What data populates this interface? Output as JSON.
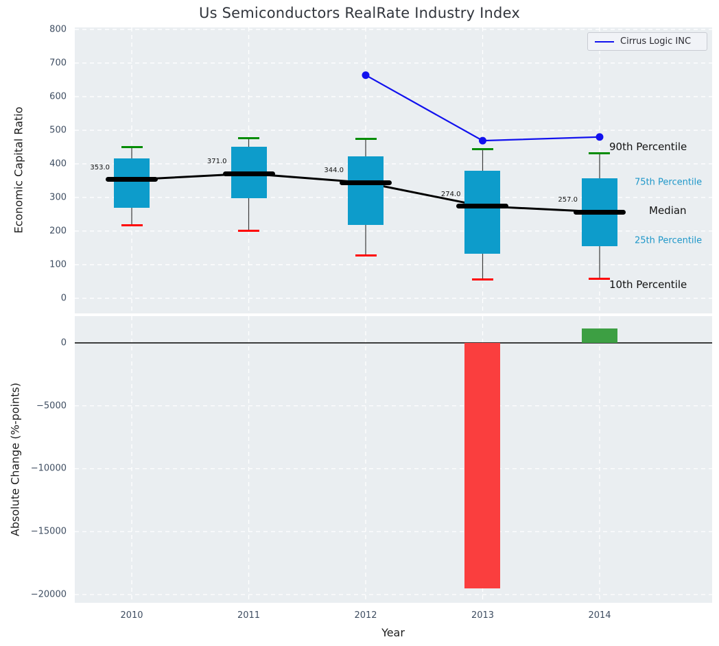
{
  "title": "Us Semiconductors RealRate Industry Index",
  "legend": {
    "label": "Cirrus Logic INC",
    "position": "upper right"
  },
  "colors": {
    "figure_bg": "#ffffff",
    "plot_bg": "#eaeef1",
    "grid": "#ffffff",
    "tick_label": "#3e4d61",
    "title": "#31353c",
    "axis_label": "#1c1c1c",
    "box_fill": "#0d9ccb",
    "whisker": "#3a3a3a",
    "cap_top_green": "#008c00",
    "cap_bottom_red": "#ff0000",
    "median_black": "#000000",
    "company_line_blue": "#1111ee",
    "bar_negative_red": "#fa3e3e",
    "bar_positive_green": "#3d9f43",
    "zero_line": "#000000",
    "annotation_cyan": "#1e97c9",
    "annotation_black": "#111111"
  },
  "chart_data": [
    {
      "type": "boxplot+line",
      "title": "Us Semiconductors RealRate Industry Index",
      "ylabel": "Economic Capital Ratio",
      "xlabel": "",
      "categories": [
        "2010",
        "2011",
        "2012",
        "2013",
        "2014"
      ],
      "x": [
        2010,
        2011,
        2012,
        2013,
        2014
      ],
      "xlim": [
        2009.513,
        2014.962
      ],
      "ylim": [
        -45,
        806
      ],
      "grid": "white dashed, on",
      "legend_entries": [
        "Cirrus Logic INC"
      ],
      "yticks": [
        {
          "v": 0,
          "label": "0"
        },
        {
          "v": 100,
          "label": "100"
        },
        {
          "v": 200,
          "label": "200"
        },
        {
          "v": 300,
          "label": "300"
        },
        {
          "v": 400,
          "label": "400"
        },
        {
          "v": 500,
          "label": "500"
        },
        {
          "v": 600,
          "label": "600"
        },
        {
          "v": 700,
          "label": "700"
        },
        {
          "v": 800,
          "label": "800"
        }
      ],
      "series": [
        {
          "name": "10th Percentile",
          "values": [
            218,
            201,
            128,
            57,
            58
          ]
        },
        {
          "name": "25th Percentile",
          "values": [
            270,
            298,
            218,
            133,
            154
          ]
        },
        {
          "name": "Median",
          "values": [
            353,
            371,
            344,
            274,
            257
          ]
        },
        {
          "name": "75th Percentile",
          "values": [
            416,
            451,
            422,
            380,
            358
          ]
        },
        {
          "name": "90th Percentile",
          "values": [
            449,
            477,
            474,
            443,
            432
          ]
        },
        {
          "name": "Cirrus Logic INC",
          "values": [
            null,
            null,
            664,
            469,
            480
          ]
        }
      ],
      "median_point_labels": [
        "353.0",
        "371.0",
        "344.0",
        "274.0",
        "257.0"
      ],
      "right_labels": [
        {
          "text": "90th Percentile",
          "value": 451,
          "x": 779,
          "style": "black-large"
        },
        {
          "text": "75th Percentile",
          "value": 345,
          "x": 816,
          "style": "cyan-small"
        },
        {
          "text": "Median",
          "value": 261,
          "x": 837,
          "style": "black-large"
        },
        {
          "text": "25th Percentile",
          "value": 171,
          "x": 816,
          "style": "cyan-small"
        },
        {
          "text": "10th Percentile",
          "value": 41,
          "x": 779,
          "style": "black-large"
        }
      ]
    },
    {
      "type": "bar",
      "ylabel": "Absolute Change (%-points)",
      "xlabel": "Year",
      "categories": [
        "2010",
        "2011",
        "2012",
        "2013",
        "2014"
      ],
      "x": [
        2010,
        2011,
        2012,
        2013,
        2014
      ],
      "values": [
        null,
        null,
        null,
        -19500,
        1150
      ],
      "xlim": [
        2009.513,
        2014.962
      ],
      "ylim": [
        -20655,
        2125
      ],
      "grid": "white dashed, on",
      "zero_line": true,
      "yticks": [
        {
          "v": 0,
          "label": "0"
        },
        {
          "v": -5000,
          "label": "−5000"
        },
        {
          "v": -10000,
          "label": "−10000"
        },
        {
          "v": -15000,
          "label": "−15000"
        },
        {
          "v": -20000,
          "label": "−20000"
        }
      ],
      "xticks": [
        {
          "v": 2010,
          "label": "2010"
        },
        {
          "v": 2011,
          "label": "2011"
        },
        {
          "v": 2012,
          "label": "2012"
        },
        {
          "v": 2013,
          "label": "2013"
        },
        {
          "v": 2014,
          "label": "2014"
        }
      ]
    }
  ]
}
